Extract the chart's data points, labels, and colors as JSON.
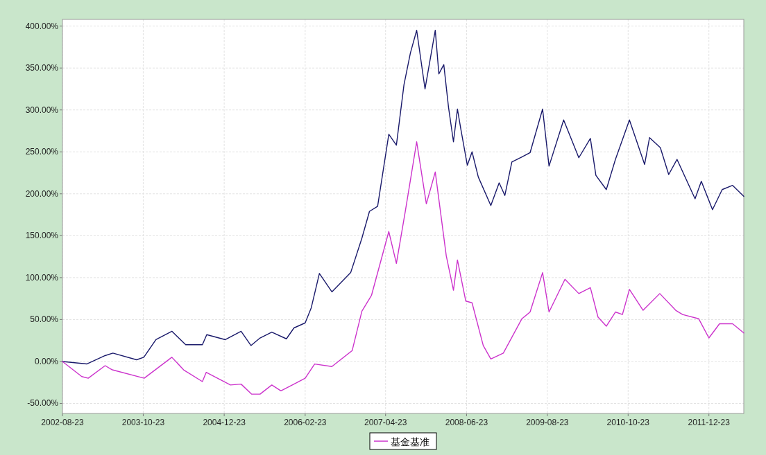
{
  "chart_data": {
    "type": "line",
    "xlim": [
      "2002-08-23",
      "2012-06-24"
    ],
    "xticks": [
      {
        "value": "2002-08-23",
        "label": "2002-08-23"
      },
      {
        "value": "2003-10-23",
        "label": "2003-10-23"
      },
      {
        "value": "2004-12-23",
        "label": "2004-12-23"
      },
      {
        "value": "2006-02-23",
        "label": "2006-02-23"
      },
      {
        "value": "2007-04-23",
        "label": "2007-04-23"
      },
      {
        "value": "2008-06-23",
        "label": "2008-06-23"
      },
      {
        "value": "2009-08-23",
        "label": "2009-08-23"
      },
      {
        "value": "2010-10-23",
        "label": "2010-10-23"
      },
      {
        "value": "2011-12-23",
        "label": "2011-12-23"
      }
    ],
    "ylim": [
      -62,
      408
    ],
    "yticks": [
      {
        "value": -50,
        "label": "-50.00%"
      },
      {
        "value": 0,
        "label": "0.00%"
      },
      {
        "value": 50,
        "label": "50.00%"
      },
      {
        "value": 100,
        "label": "100.00%"
      },
      {
        "value": 150,
        "label": "150.00%"
      },
      {
        "value": 200,
        "label": "200.00%"
      },
      {
        "value": 250,
        "label": "250.00%"
      },
      {
        "value": 300,
        "label": "300.00%"
      },
      {
        "value": 350,
        "label": "350.00%"
      },
      {
        "value": 400,
        "label": "400.00%"
      }
    ],
    "grid": true,
    "legend": "bottom",
    "line_style": "solid",
    "series": [
      {
        "color": "#1a1a6b",
        "x": [
          "2002-08-23",
          "2002-12-29",
          "2003-04-05",
          "2003-05-16",
          "2003-09-18",
          "2003-10-26",
          "2003-12-29",
          "2004-03-22",
          "2004-06-03",
          "2004-08-30",
          "2004-09-22",
          "2004-12-29",
          "2005-03-22",
          "2005-05-13",
          "2005-06-30",
          "2005-08-31",
          "2005-11-16",
          "2005-12-26",
          "2006-02-23",
          "2006-03-27",
          "2006-05-09",
          "2006-07-14",
          "2006-10-21",
          "2006-12-19",
          "2007-01-28",
          "2007-03-12",
          "2007-05-10",
          "2007-06-19",
          "2007-07-29",
          "2007-09-01",
          "2007-10-04",
          "2007-11-17",
          "2008-01-10",
          "2008-01-29",
          "2008-02-24",
          "2008-03-20",
          "2008-04-15",
          "2008-05-06",
          "2008-05-24",
          "2008-06-27",
          "2008-07-22",
          "2008-08-24",
          "2008-10-29",
          "2008-12-12",
          "2009-01-11",
          "2009-02-17",
          "2009-04-11",
          "2009-05-24",
          "2009-07-29",
          "2009-09-01",
          "2009-11-17",
          "2010-02-05",
          "2010-04-07",
          "2010-05-06",
          "2010-06-30",
          "2010-08-17",
          "2010-10-30",
          "2011-01-18",
          "2011-02-13",
          "2011-04-11",
          "2011-05-25",
          "2011-07-08",
          "2011-10-11",
          "2011-11-13",
          "2012-01-11",
          "2012-03-02",
          "2012-04-26",
          "2012-06-24"
        ],
        "values": [
          0,
          -3,
          7,
          10,
          2,
          5,
          26,
          36,
          20,
          20,
          32,
          26,
          36,
          19,
          28,
          35,
          27,
          40,
          46,
          64,
          105,
          83,
          106,
          147,
          179,
          185,
          271,
          258,
          330,
          368,
          395,
          325,
          395,
          343,
          354,
          303,
          262,
          301,
          277,
          234,
          250,
          220,
          186,
          213,
          198,
          238,
          244,
          249,
          301,
          233,
          288,
          243,
          266,
          222,
          205,
          241,
          288,
          235,
          267,
          255,
          223,
          241,
          194,
          215,
          181,
          205,
          210,
          197
        ]
      },
      {
        "name": "基金基准",
        "color": "#cc33cc",
        "x": [
          "2002-08-23",
          "2002-12-03",
          "2003-01-06",
          "2003-04-05",
          "2003-05-13",
          "2003-10-28",
          "2004-03-22",
          "2004-05-23",
          "2004-08-30",
          "2004-09-19",
          "2005-01-25",
          "2005-03-22",
          "2005-05-17",
          "2005-06-30",
          "2005-08-31",
          "2005-10-18",
          "2005-12-26",
          "2006-02-23",
          "2006-04-14",
          "2006-07-14",
          "2006-10-29",
          "2006-12-19",
          "2007-02-08",
          "2007-05-10",
          "2007-06-19",
          "2007-08-05",
          "2007-10-04",
          "2007-11-24",
          "2008-01-10",
          "2008-03-08",
          "2008-04-15",
          "2008-05-06",
          "2008-06-19",
          "2008-07-22",
          "2008-09-19",
          "2008-10-29",
          "2009-01-03",
          "2009-04-11",
          "2009-05-24",
          "2009-07-29",
          "2009-09-01",
          "2009-11-24",
          "2010-02-05",
          "2010-04-07",
          "2010-05-17",
          "2010-06-30",
          "2010-08-17",
          "2010-09-23",
          "2010-10-30",
          "2011-01-10",
          "2011-04-08",
          "2011-07-01",
          "2011-08-06",
          "2011-10-30",
          "2011-12-23",
          "2012-02-17",
          "2012-04-26",
          "2012-06-24"
        ],
        "values": [
          0,
          -18,
          -20,
          -5,
          -10,
          -20,
          5,
          -10,
          -24,
          -13,
          -28,
          -27,
          -39,
          -39,
          -28,
          -35,
          -27,
          -20,
          -3,
          -6,
          13,
          60,
          79,
          155,
          117,
          179,
          262,
          188,
          226,
          126,
          85,
          121,
          72,
          70,
          19,
          3,
          10,
          51,
          59,
          106,
          59,
          98,
          81,
          88,
          53,
          42,
          59,
          56,
          86,
          61,
          81,
          61,
          56,
          51,
          28,
          45,
          45,
          34
        ]
      }
    ]
  }
}
